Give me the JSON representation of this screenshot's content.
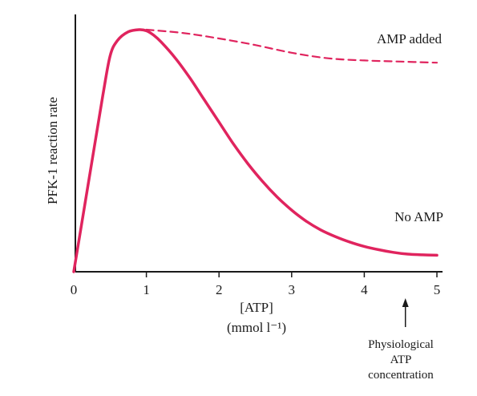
{
  "chart_data": {
    "type": "line",
    "ylabel": "PFK-1 reaction rate",
    "xlabel_line1": "[ATP]",
    "xlabel_line2": "(mmol l⁻¹)",
    "xlim": [
      0,
      5
    ],
    "ylim": [
      0,
      1.1
    ],
    "x_ticks": [
      "0",
      "1",
      "2",
      "3",
      "4",
      "5"
    ],
    "grid": false,
    "series": [
      {
        "name": "No AMP",
        "style": "solid",
        "color": "#e0245e",
        "x": [
          0,
          0.2,
          0.4,
          0.5,
          0.6,
          0.75,
          0.9,
          1.0,
          1.1,
          1.2,
          1.4,
          1.6,
          1.8,
          2.0,
          2.2,
          2.4,
          2.6,
          2.8,
          3.0,
          3.2,
          3.4,
          3.6,
          3.8,
          4.0,
          4.2,
          4.4,
          4.6,
          4.8,
          5.0
        ],
        "y": [
          0,
          0.4,
          0.8,
          0.98,
          1.05,
          1.09,
          1.1,
          1.095,
          1.075,
          1.045,
          0.97,
          0.88,
          0.78,
          0.68,
          0.58,
          0.49,
          0.41,
          0.34,
          0.28,
          0.23,
          0.19,
          0.16,
          0.135,
          0.115,
          0.1,
          0.088,
          0.08,
          0.077,
          0.075
        ]
      },
      {
        "name": "AMP added",
        "style": "dashed",
        "color": "#e0245e",
        "x": [
          1.0,
          1.5,
          2.0,
          2.5,
          3.0,
          3.5,
          4.0,
          4.5,
          5.0
        ],
        "y": [
          1.1,
          1.085,
          1.06,
          1.03,
          0.995,
          0.97,
          0.96,
          0.955,
          0.95
        ]
      }
    ],
    "annotations": [
      {
        "text_lines": [
          "Physiological",
          "ATP",
          "concentration"
        ],
        "x": 4.5,
        "arrow": "up"
      }
    ]
  }
}
